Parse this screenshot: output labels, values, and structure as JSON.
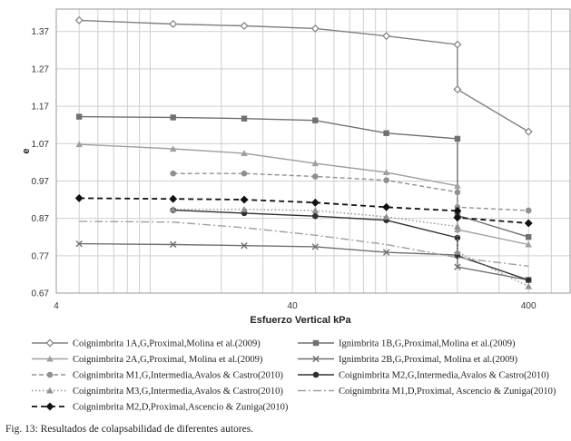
{
  "caption": "Fig. 13: Resultados de colapsabilidad de diferentes autores.",
  "chart_data": {
    "type": "line",
    "xlabel": "Esfuerzo Vertical  kPa",
    "ylabel": "e",
    "xscale": "log",
    "xlim": [
      4,
      600
    ],
    "ylim": [
      0.67,
      1.43
    ],
    "xticks": [
      4,
      40,
      400
    ],
    "yticks": [
      0.67,
      0.77,
      0.87,
      0.97,
      1.07,
      1.17,
      1.27,
      1.37
    ],
    "grid": true,
    "legend_position": "bottom",
    "series": [
      {
        "name": "Coignimbrita 1A,G,Proximal,Molina et al.(2009)",
        "color": "#808080",
        "dash": "solid",
        "marker": "diamond-open",
        "points": [
          [
            5,
            1.4
          ],
          [
            12.5,
            1.39
          ],
          [
            25,
            1.385
          ],
          [
            50,
            1.378
          ],
          [
            100,
            1.358
          ],
          [
            200,
            1.335
          ],
          [
            200,
            1.215
          ],
          [
            400,
            1.102
          ]
        ]
      },
      {
        "name": "Ignimbrita 1B,G,Proximal,Molina et al.(2009)",
        "color": "#707070",
        "dash": "solid",
        "marker": "square",
        "points": [
          [
            5,
            1.142
          ],
          [
            12.5,
            1.14
          ],
          [
            25,
            1.137
          ],
          [
            50,
            1.132
          ],
          [
            100,
            1.098
          ],
          [
            200,
            1.083
          ],
          [
            200,
            0.878
          ],
          [
            400,
            0.82
          ]
        ]
      },
      {
        "name": "Coignimbrita 2A,G,Proximal, Molina et al.(2009)",
        "color": "#a0a0a0",
        "dash": "solid",
        "marker": "triangle",
        "points": [
          [
            5,
            1.068
          ],
          [
            12.5,
            1.056
          ],
          [
            25,
            1.044
          ],
          [
            50,
            1.017
          ],
          [
            100,
            0.993
          ],
          [
            200,
            0.957
          ],
          [
            200,
            0.84
          ],
          [
            400,
            0.8
          ]
        ]
      },
      {
        "name": "Ignimbrita 2B,G,Proximal, Molina et al.(2009)",
        "color": "#707070",
        "dash": "solid",
        "marker": "x",
        "points": [
          [
            5,
            0.802
          ],
          [
            12.5,
            0.8
          ],
          [
            25,
            0.797
          ],
          [
            50,
            0.794
          ],
          [
            100,
            0.779
          ],
          [
            200,
            0.772
          ],
          [
            200,
            0.74
          ],
          [
            400,
            0.705
          ]
        ]
      },
      {
        "name": "Coignimbrita M1,G,Intermedia,Avalos & Castro(2010)",
        "color": "#909090",
        "dash": "dashed",
        "marker": "circle",
        "points": [
          [
            12.5,
            0.99
          ],
          [
            25,
            0.99
          ],
          [
            50,
            0.982
          ],
          [
            100,
            0.972
          ],
          [
            200,
            0.94
          ],
          [
            200,
            0.9
          ],
          [
            400,
            0.891
          ]
        ]
      },
      {
        "name": "Coignimbrita M2,G,Intermedia,Avalos & Castro(2010)",
        "color": "#303030",
        "dash": "solid",
        "marker": "circle",
        "points": [
          [
            12.5,
            0.892
          ],
          [
            25,
            0.884
          ],
          [
            50,
            0.876
          ],
          [
            100,
            0.865
          ],
          [
            200,
            0.818
          ],
          [
            200,
            0.77
          ],
          [
            400,
            0.705
          ]
        ]
      },
      {
        "name": "Coignimbrita M3,G,Intermedia,Avalos & Castro(2010)",
        "color": "#909090",
        "dash": "dotted",
        "marker": "triangle",
        "points": [
          [
            12.5,
            0.894
          ],
          [
            25,
            0.894
          ],
          [
            50,
            0.891
          ],
          [
            100,
            0.874
          ],
          [
            200,
            0.848
          ],
          [
            200,
            0.78
          ],
          [
            400,
            0.688
          ]
        ]
      },
      {
        "name": "Coignimbrita M1,D,Proximal, Ascencio & Zuniga(2010)",
        "color": "#a0a0a0",
        "dash": "dashdot",
        "marker": "none",
        "points": [
          [
            5,
            0.862
          ],
          [
            12.5,
            0.86
          ],
          [
            25,
            0.845
          ],
          [
            50,
            0.825
          ],
          [
            100,
            0.8
          ],
          [
            200,
            0.765
          ],
          [
            400,
            0.742
          ]
        ]
      },
      {
        "name": "Coignimbrita M2,D,Proximal,Ascencio & Zuniga(2010)",
        "color": "#111111",
        "dash": "dashed-heavy",
        "marker": "diamond-filled",
        "points": [
          [
            5,
            0.924
          ],
          [
            12.5,
            0.922
          ],
          [
            25,
            0.92
          ],
          [
            50,
            0.912
          ],
          [
            100,
            0.9
          ],
          [
            200,
            0.89
          ],
          [
            200,
            0.872
          ],
          [
            400,
            0.857
          ]
        ]
      }
    ]
  }
}
